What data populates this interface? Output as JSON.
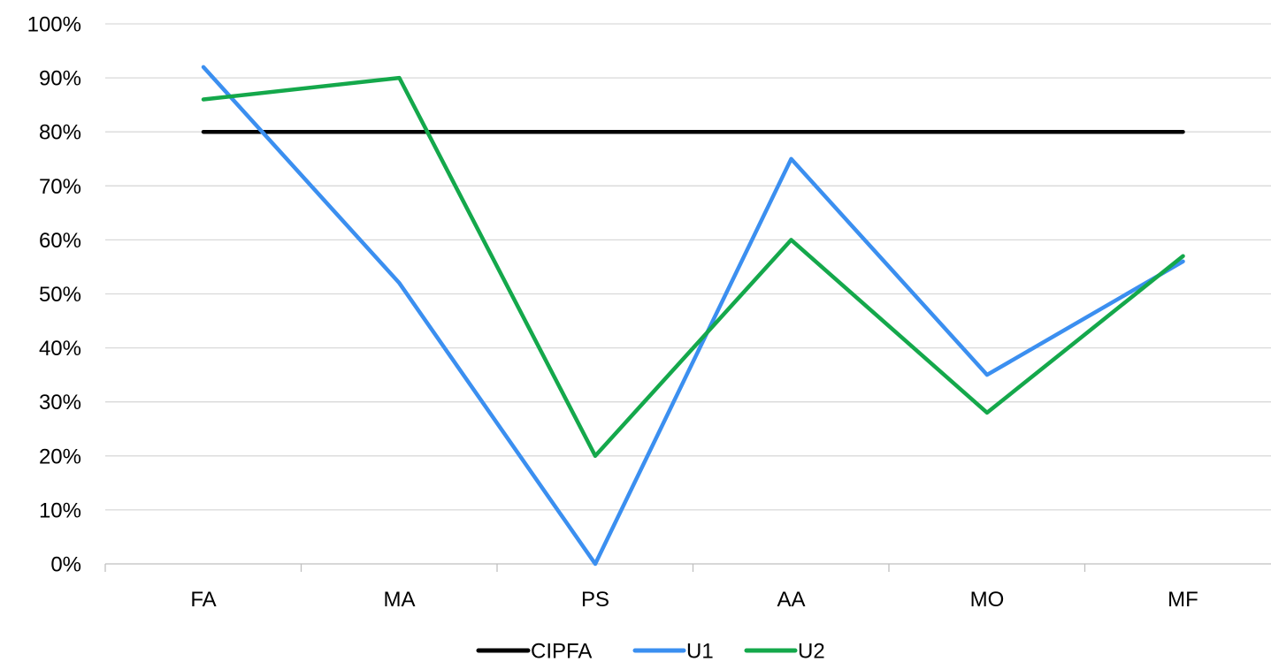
{
  "chart_data": {
    "type": "line",
    "title": "",
    "xlabel": "",
    "ylabel": "",
    "categories": [
      "FA",
      "MA",
      "PS",
      "AA",
      "MO",
      "MF"
    ],
    "ylim": [
      0,
      100
    ],
    "yticks": [
      0,
      10,
      20,
      30,
      40,
      50,
      60,
      70,
      80,
      90,
      100
    ],
    "ytick_labels": [
      "0%",
      "10%",
      "20%",
      "30%",
      "40%",
      "50%",
      "60%",
      "70%",
      "80%",
      "90%",
      "100%"
    ],
    "grid": true,
    "legend_position": "bottom",
    "series": [
      {
        "name": "CIPFA",
        "color": "#000000",
        "values": [
          80,
          80,
          80,
          80,
          80,
          80
        ]
      },
      {
        "name": "U1",
        "color": "#3b8ff0",
        "values": [
          92,
          52,
          0,
          75,
          35,
          56
        ]
      },
      {
        "name": "U2",
        "color": "#14a84b",
        "values": [
          86,
          90,
          20,
          60,
          28,
          57
        ]
      }
    ]
  }
}
